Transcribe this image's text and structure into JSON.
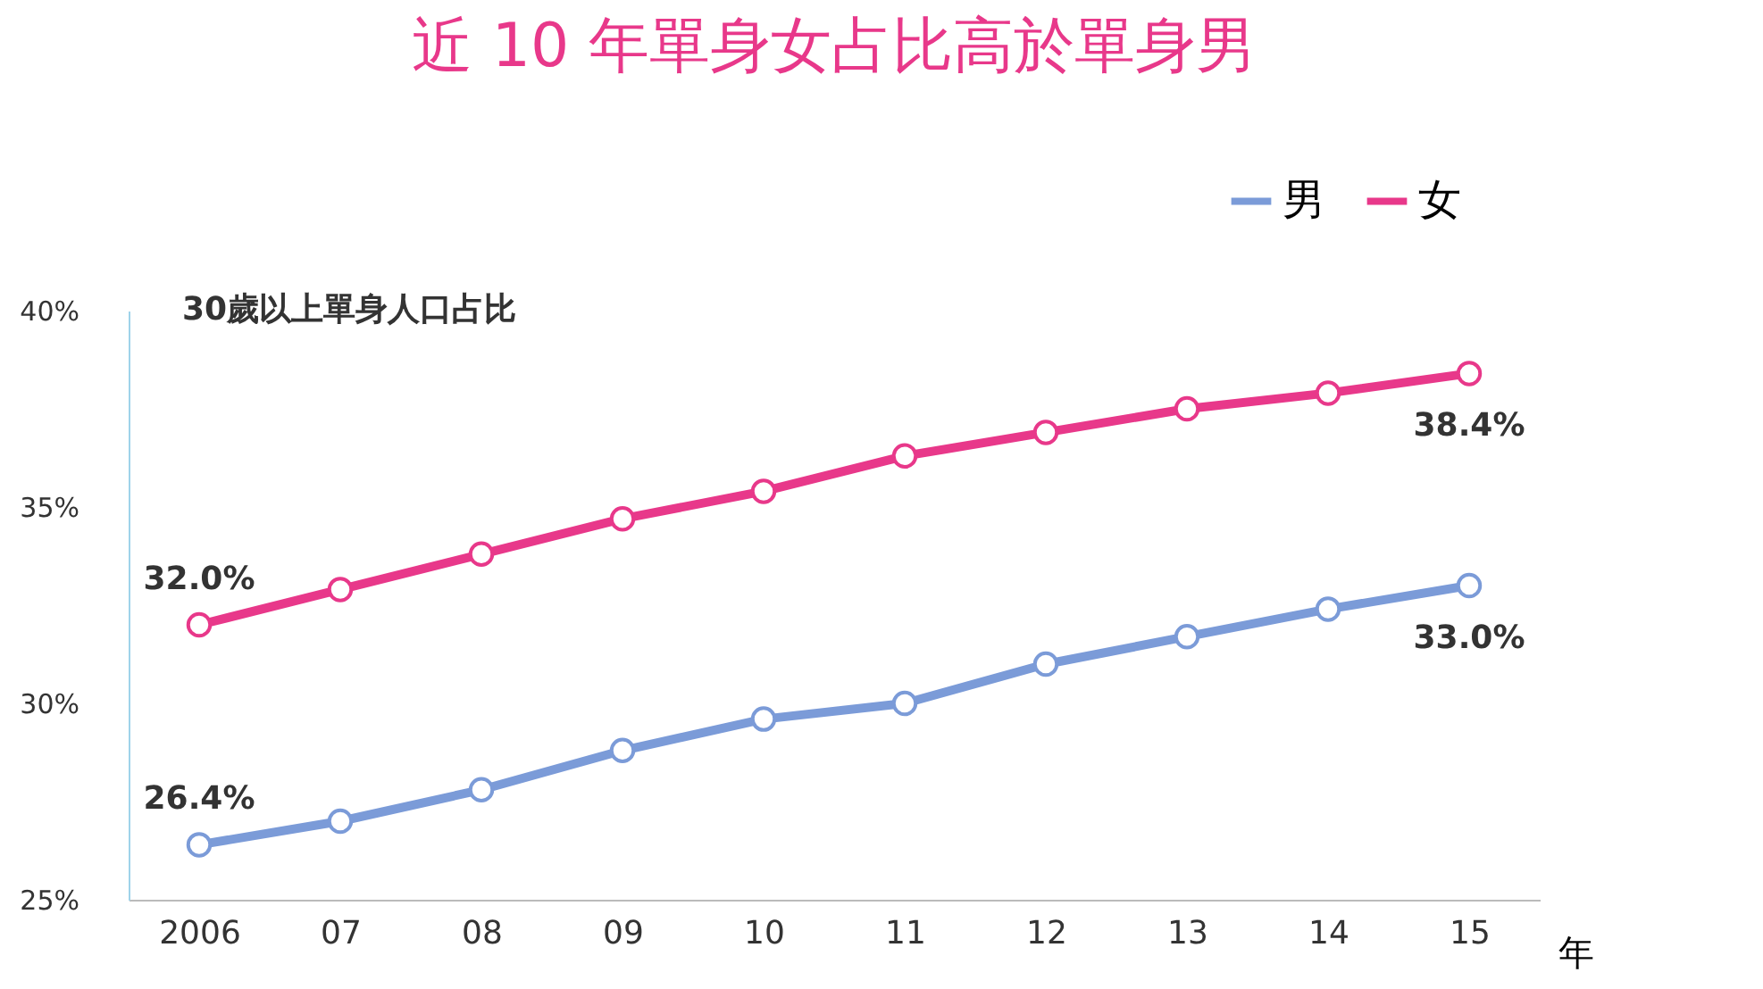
{
  "chart_data": {
    "type": "line",
    "title": "近 10 年單身女占比高於單身男",
    "annotations": [
      "30歲以上單身人口占比"
    ],
    "xlabel": "年",
    "categories": [
      "2006",
      "07",
      "08",
      "09",
      "10",
      "11",
      "12",
      "13",
      "14",
      "15"
    ],
    "series": [
      {
        "name": "男",
        "color": "#7b9bd8",
        "values": [
          26.4,
          27.0,
          27.8,
          28.8,
          29.6,
          30.0,
          31.0,
          31.7,
          32.4,
          33.0
        ],
        "value_labels": [
          "26.4%",
          null,
          null,
          null,
          null,
          null,
          null,
          null,
          null,
          "33.0%"
        ]
      },
      {
        "name": "女",
        "color": "#e8388a",
        "values": [
          32.0,
          32.9,
          33.8,
          34.7,
          35.4,
          36.3,
          36.9,
          37.5,
          37.9,
          38.4
        ],
        "value_labels": [
          "32.0%",
          null,
          null,
          null,
          null,
          null,
          null,
          null,
          null,
          "38.4%"
        ]
      }
    ],
    "ylim": [
      25,
      40
    ],
    "yticks": [
      {
        "value": 25,
        "label": "25%"
      },
      {
        "value": 30,
        "label": "30%"
      },
      {
        "value": 35,
        "label": "35%"
      },
      {
        "value": 40,
        "label": "40%"
      }
    ],
    "grid": false,
    "legend": "top right",
    "marker": "circle",
    "line_style": "solid"
  }
}
